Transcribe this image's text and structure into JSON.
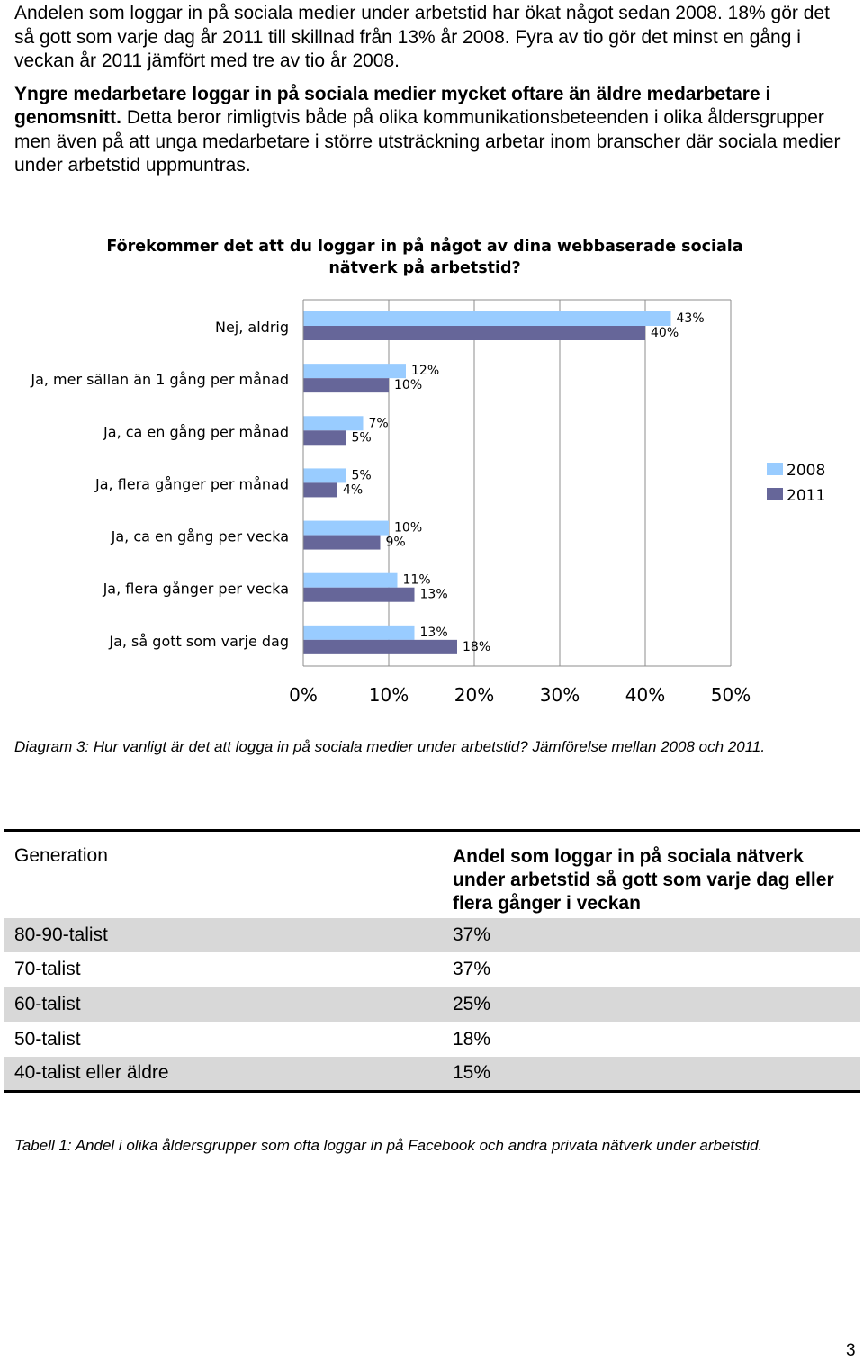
{
  "intro": {
    "p1": "Andelen som loggar in på sociala medier under arbetstid har ökat något sedan 2008. 18% gör det så gott som varje dag år 2011 till skillnad från 13% år 2008. Fyra av tio gör det minst en gång i veckan år 2011 jämfört med tre av tio år 2008.",
    "p2_bold": "Yngre medarbetare loggar in på sociala medier mycket oftare än äldre medarbetare i genomsnitt.",
    "p2_rest": " Detta beror rimligtvis både på olika kommunikationsbeteenden i olika åldersgrupper men även på att unga medarbetare i större utsträckning arbetar inom branscher där sociala medier under arbetstid uppmuntras."
  },
  "chart_data": {
    "type": "bar",
    "orientation": "horizontal",
    "title_line1": "Förekommer det att du loggar in på något av dina webbaserade sociala",
    "title_line2": "nätverk på arbetstid?",
    "categories": [
      "Nej, aldrig",
      "Ja, mer sällan än 1 gång per månad",
      "Ja, ca en gång per månad",
      "Ja, flera gånger per månad",
      "Ja, ca en gång per vecka",
      "Ja, flera gånger per vecka",
      "Ja, så gott som varje dag"
    ],
    "series": [
      {
        "name": "2008",
        "color": "#99ccff",
        "values": [
          43,
          12,
          7,
          5,
          10,
          11,
          13
        ]
      },
      {
        "name": "2011",
        "color": "#666699",
        "values": [
          40,
          10,
          5,
          4,
          9,
          13,
          18
        ]
      }
    ],
    "x_ticks": [
      "0%",
      "10%",
      "20%",
      "30%",
      "40%",
      "50%"
    ],
    "xlim": [
      0,
      50
    ],
    "grid": true,
    "legend": "right"
  },
  "chart_caption": "Diagram 3: Hur vanligt är det att logga in på sociala medier under arbetstid? Jämförelse mellan 2008 och 2011.",
  "table": {
    "header_col1": "Generation",
    "header_col2": "Andel som loggar in på sociala nätverk under arbetstid så gott som varje dag eller flera gånger i veckan",
    "rows": [
      {
        "generation": "80-90-talist",
        "share": "37%"
      },
      {
        "generation": "70-talist",
        "share": "37%"
      },
      {
        "generation": "60-talist",
        "share": "25%"
      },
      {
        "generation": "50-talist",
        "share": "18%"
      },
      {
        "generation": "40-talist eller äldre",
        "share": "15%"
      }
    ]
  },
  "table_caption": "Tabell 1: Andel i olika åldersgrupper som ofta loggar in på Facebook och andra privata nätverk under arbetstid.",
  "page_number": "3"
}
